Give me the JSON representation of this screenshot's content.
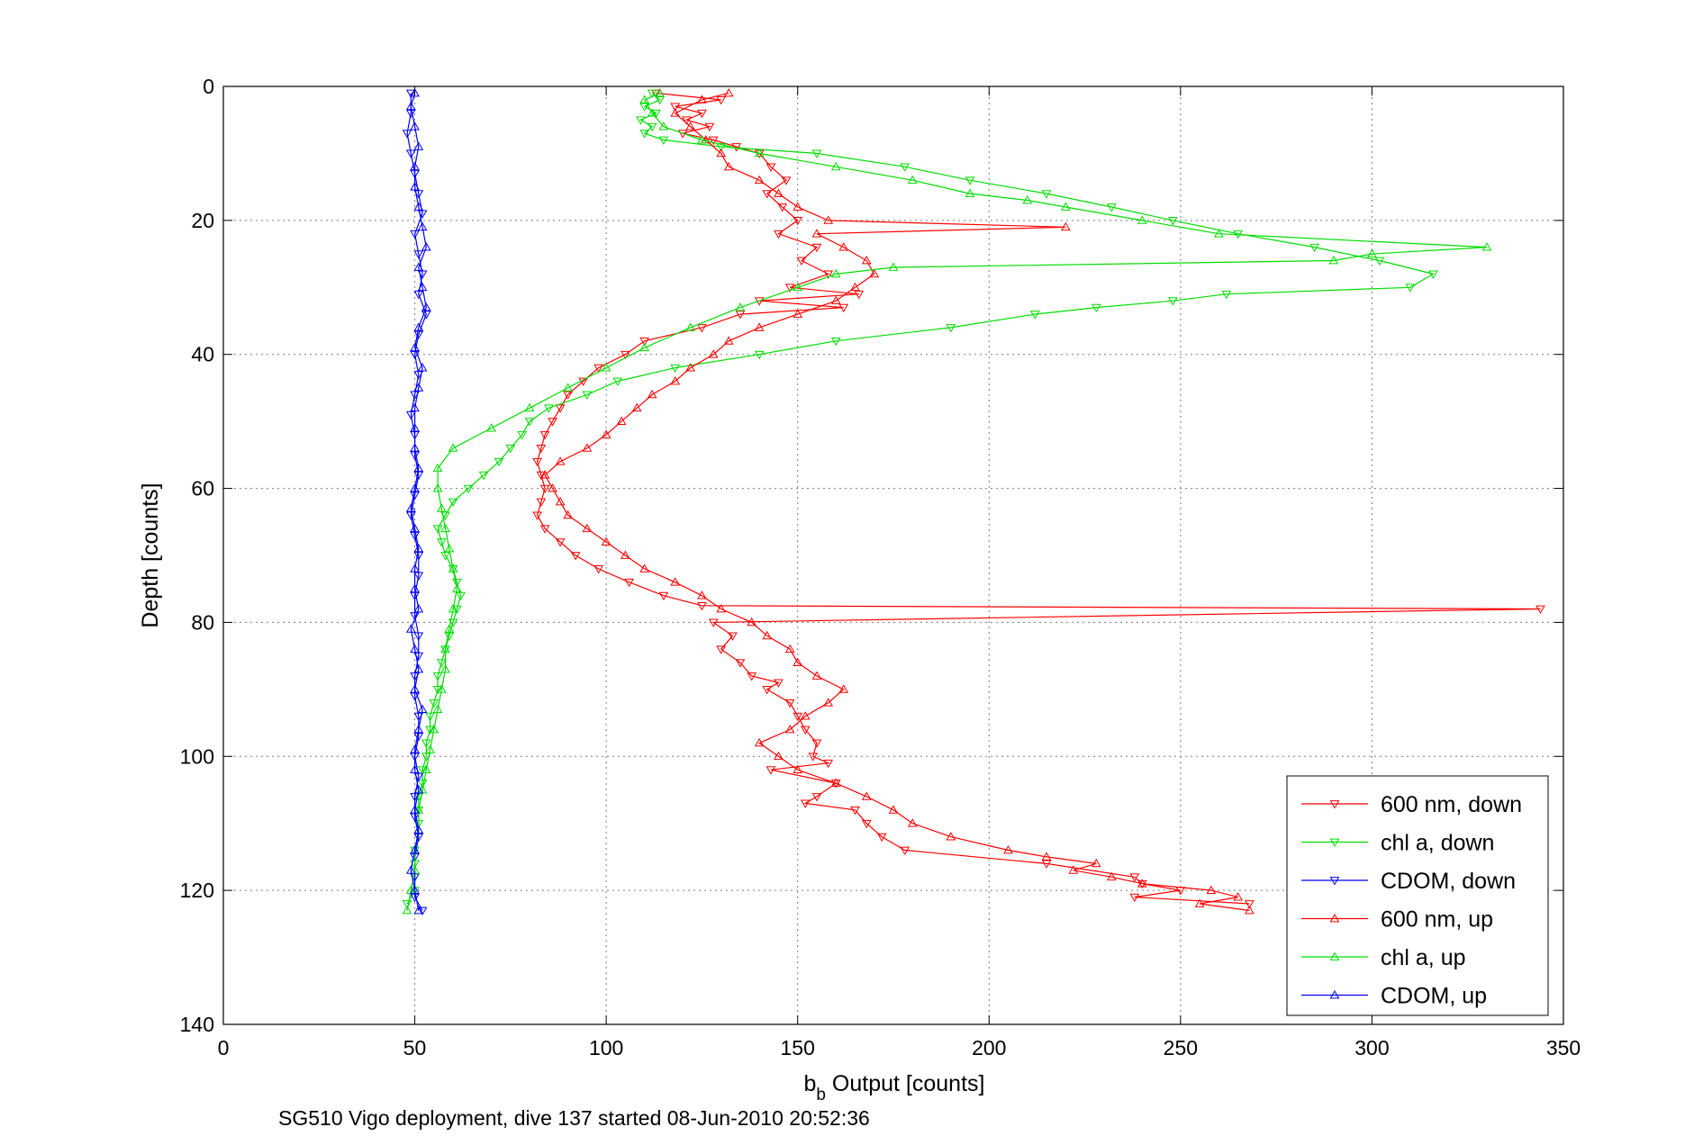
{
  "chart_data": {
    "type": "line",
    "title": "",
    "caption": "SG510 Vigo deployment, dive 137 started 08-Jun-2010 20:52:36",
    "xlabel_main": "b",
    "xlabel_sub": "b",
    "xlabel_rest": " Output [counts]",
    "ylabel": "Depth [counts]",
    "xlim": [
      0,
      350
    ],
    "ylim": [
      0,
      140
    ],
    "y_reversed": true,
    "grid": true,
    "legend_position": "bottom-right",
    "x_ticks": [
      "0",
      "50",
      "100",
      "150",
      "200",
      "250",
      "300",
      "350"
    ],
    "y_ticks": [
      "0",
      "20",
      "40",
      "60",
      "80",
      "100",
      "120",
      "140"
    ],
    "series": [
      {
        "name": "600 nm, down",
        "color": "#ff0000",
        "marker": "triangle-down",
        "depth": [
          1,
          2,
          3,
          4,
          5,
          6,
          7,
          8,
          9,
          10,
          12,
          14,
          16,
          18,
          20,
          22,
          24,
          26,
          28,
          30,
          31,
          32,
          33,
          34,
          36,
          38,
          40,
          42,
          44,
          46,
          48,
          50,
          52,
          54,
          56,
          58,
          60,
          62,
          64,
          66,
          68,
          70,
          72,
          74,
          76,
          77.5,
          78,
          80,
          82,
          84,
          86,
          88,
          89,
          90,
          92,
          94,
          96,
          98,
          100,
          101,
          102,
          104,
          106,
          107,
          108,
          110,
          112,
          114,
          116,
          118,
          119,
          120,
          121,
          122
        ],
        "x": [
          113,
          130,
          118,
          125,
          121,
          127,
          120,
          128,
          134,
          140,
          143,
          147,
          142,
          146,
          150,
          145,
          155,
          151,
          158,
          148,
          166,
          140,
          162,
          135,
          125,
          110,
          105,
          98,
          94,
          90,
          88,
          86,
          84,
          83,
          82,
          83,
          84,
          83,
          82,
          84,
          88,
          92,
          98,
          106,
          115,
          125,
          344,
          128,
          133,
          130,
          135,
          138,
          145,
          142,
          148,
          150,
          152,
          155,
          154,
          158,
          143,
          160,
          155,
          152,
          165,
          168,
          172,
          178,
          215,
          238,
          240,
          250,
          238,
          268
        ]
      },
      {
        "name": "chl a, down",
        "color": "#00dd00",
        "marker": "triangle-down",
        "depth": [
          1,
          2,
          3,
          4,
          5,
          6,
          7,
          8,
          9,
          10,
          12,
          14,
          16,
          18,
          20,
          22,
          24,
          26,
          28,
          30,
          31,
          32,
          33,
          34,
          36,
          38,
          40,
          42,
          44,
          46,
          48,
          50,
          52,
          54,
          56,
          58,
          60,
          62,
          64,
          66,
          68,
          70,
          72,
          74,
          76,
          78,
          80,
          82,
          84,
          86,
          88,
          90,
          92,
          94,
          96,
          98,
          100,
          102,
          104,
          106,
          108,
          110,
          112,
          114,
          116,
          118,
          120,
          122
        ],
        "x": [
          112,
          114,
          110,
          113,
          109,
          112,
          110,
          115,
          130,
          155,
          178,
          195,
          215,
          232,
          248,
          265,
          285,
          302,
          316,
          310,
          262,
          248,
          228,
          212,
          190,
          160,
          140,
          118,
          103,
          95,
          85,
          80,
          78,
          75,
          72,
          68,
          64,
          60,
          58,
          56,
          57,
          58,
          60,
          61,
          62,
          61,
          60,
          59,
          58,
          57,
          56,
          56,
          55,
          54,
          54,
          53,
          53,
          52,
          52,
          51,
          51,
          51,
          51,
          50,
          50,
          50,
          50,
          48
        ]
      },
      {
        "name": "CDOM, down",
        "color": "#0000ff",
        "marker": "triangle-down",
        "depth": [
          1,
          4,
          7,
          10,
          13,
          16,
          19,
          22,
          25,
          28,
          31,
          34,
          37,
          40,
          43,
          46,
          49,
          52,
          55,
          58,
          61,
          64,
          67,
          70,
          73,
          76,
          79,
          82,
          85,
          88,
          91,
          94,
          97,
          100,
          103,
          106,
          109,
          112,
          115,
          118,
          121,
          123
        ],
        "x": [
          49,
          49,
          48,
          49,
          50,
          51,
          52,
          50,
          51,
          52,
          51,
          53,
          51,
          50,
          51,
          50,
          49,
          50,
          50,
          51,
          50,
          49,
          50,
          51,
          51,
          50,
          50,
          51,
          51,
          50,
          50,
          51,
          51,
          50,
          51,
          50,
          50,
          51,
          50,
          50,
          50,
          52
        ]
      },
      {
        "name": "600 nm, up",
        "color": "#ff0000",
        "marker": "triangle-up",
        "depth": [
          123,
          122,
          121,
          120,
          119,
          118,
          117,
          116,
          115,
          114,
          112,
          110,
          108,
          106,
          104,
          102,
          100,
          98,
          96,
          94,
          92,
          90,
          88,
          86,
          84,
          82,
          80,
          78,
          76,
          74,
          72,
          70,
          68,
          66,
          64,
          62,
          60,
          58,
          56,
          54,
          52,
          50,
          48,
          46,
          44,
          42,
          40,
          38,
          36,
          34,
          32,
          30,
          28,
          26,
          24,
          22,
          21,
          20,
          18,
          16,
          14,
          12,
          10,
          8,
          6,
          4,
          2,
          1
        ],
        "x": [
          268,
          255,
          265,
          258,
          240,
          232,
          222,
          228,
          215,
          205,
          190,
          180,
          175,
          168,
          160,
          150,
          145,
          140,
          148,
          152,
          158,
          162,
          155,
          150,
          148,
          142,
          138,
          130,
          125,
          118,
          110,
          105,
          100,
          95,
          90,
          88,
          86,
          84,
          88,
          95,
          100,
          104,
          108,
          112,
          118,
          122,
          128,
          132,
          140,
          150,
          160,
          165,
          170,
          168,
          162,
          155,
          220,
          158,
          150,
          145,
          140,
          132,
          130,
          126,
          122,
          118,
          125,
          132
        ]
      },
      {
        "name": "chl a, up",
        "color": "#00dd00",
        "marker": "triangle-up",
        "depth": [
          123,
          120,
          117,
          114,
          111,
          108,
          105,
          102,
          99,
          96,
          93,
          90,
          87,
          84,
          81,
          78,
          75,
          72,
          69,
          66,
          63,
          60,
          57,
          54,
          51,
          48,
          45,
          42,
          39,
          36,
          33,
          30,
          28,
          27,
          26,
          25,
          24,
          22,
          20,
          18,
          17,
          16,
          14,
          12,
          10,
          8,
          6,
          4,
          2,
          1
        ],
        "x": [
          48,
          49,
          50,
          50,
          51,
          51,
          52,
          53,
          54,
          55,
          56,
          57,
          58,
          58,
          59,
          60,
          61,
          60,
          59,
          58,
          57,
          56,
          56,
          60,
          70,
          80,
          90,
          100,
          110,
          122,
          135,
          150,
          160,
          175,
          290,
          300,
          330,
          260,
          240,
          220,
          210,
          195,
          180,
          160,
          140,
          125,
          115,
          112,
          110,
          114
        ]
      },
      {
        "name": "CDOM, up",
        "color": "#0000ff",
        "marker": "triangle-up",
        "depth": [
          123,
          120,
          117,
          114,
          111,
          108,
          105,
          102,
          99,
          96,
          93,
          90,
          87,
          84,
          81,
          78,
          75,
          72,
          69,
          66,
          63,
          60,
          57,
          54,
          51,
          48,
          45,
          42,
          39,
          36,
          33,
          30,
          27,
          24,
          21,
          18,
          15,
          12,
          9,
          6,
          3,
          1
        ],
        "x": [
          51,
          50,
          49,
          50,
          51,
          50,
          51,
          50,
          50,
          51,
          52,
          50,
          51,
          50,
          49,
          51,
          50,
          50,
          51,
          50,
          49,
          50,
          51,
          50,
          50,
          50,
          51,
          52,
          50,
          51,
          53,
          52,
          51,
          53,
          52,
          51,
          50,
          50,
          51,
          50,
          49,
          50
        ]
      }
    ]
  }
}
